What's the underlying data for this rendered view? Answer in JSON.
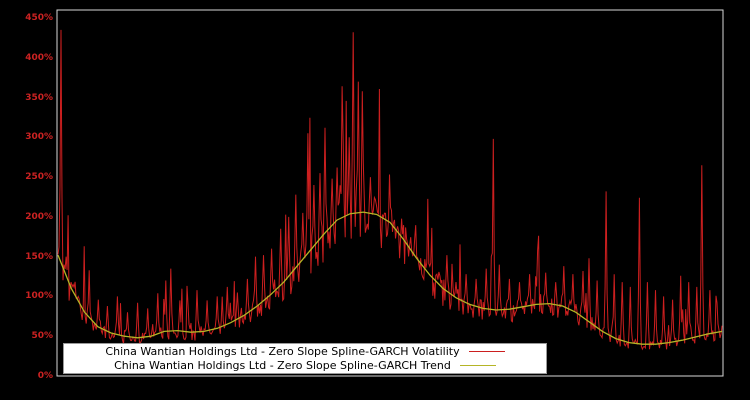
{
  "colors": {
    "background": "#000000",
    "plot_border": "#d8d8d8",
    "volatility": "#cc1f1f",
    "trend": "#b5b526",
    "tick_label": "#cc2222",
    "legend_bg": "#ffffff",
    "legend_text": "#000000"
  },
  "legend": {
    "entries": [
      {
        "label": "China Wantian Holdings Ltd - Zero Slope Spline-GARCH Volatility",
        "color_key": "volatility"
      },
      {
        "label": "China Wantian Holdings Ltd - Zero Slope Spline-GARCH Trend",
        "color_key": "trend"
      }
    ]
  },
  "chart_data": {
    "type": "line",
    "title": "",
    "xlabel": "",
    "ylabel": "",
    "x_range": [
      0,
      1
    ],
    "ylim": [
      0,
      460
    ],
    "grid": false,
    "legend_position": "bottom-center",
    "ytick_values": [
      0,
      50,
      100,
      150,
      200,
      250,
      300,
      350,
      400,
      450
    ],
    "ytick_labels": [
      "0%",
      "50%",
      "100%",
      "150%",
      "200%",
      "250%",
      "300%",
      "350%",
      "400%",
      "450%"
    ],
    "series": [
      {
        "name": "China Wantian Holdings Ltd - Zero Slope Spline-GARCH Volatility",
        "style": "spiky",
        "unit": "percent"
      },
      {
        "name": "China Wantian Holdings Ltd - Zero Slope Spline-GARCH Trend",
        "style": "smooth",
        "unit": "percent",
        "points": [
          [
            0.0,
            152
          ],
          [
            0.02,
            110
          ],
          [
            0.04,
            80
          ],
          [
            0.06,
            62
          ],
          [
            0.08,
            54
          ],
          [
            0.1,
            50
          ],
          [
            0.12,
            48
          ],
          [
            0.14,
            50
          ],
          [
            0.16,
            56
          ],
          [
            0.18,
            57
          ],
          [
            0.2,
            55
          ],
          [
            0.22,
            56
          ],
          [
            0.24,
            60
          ],
          [
            0.26,
            67
          ],
          [
            0.28,
            76
          ],
          [
            0.3,
            88
          ],
          [
            0.32,
            102
          ],
          [
            0.34,
            118
          ],
          [
            0.36,
            138
          ],
          [
            0.38,
            158
          ],
          [
            0.4,
            178
          ],
          [
            0.42,
            196
          ],
          [
            0.44,
            204
          ],
          [
            0.46,
            206
          ],
          [
            0.48,
            203
          ],
          [
            0.5,
            193
          ],
          [
            0.52,
            172
          ],
          [
            0.54,
            148
          ],
          [
            0.56,
            127
          ],
          [
            0.58,
            110
          ],
          [
            0.6,
            98
          ],
          [
            0.62,
            90
          ],
          [
            0.64,
            85
          ],
          [
            0.66,
            83
          ],
          [
            0.68,
            84
          ],
          [
            0.7,
            87
          ],
          [
            0.72,
            90
          ],
          [
            0.74,
            91
          ],
          [
            0.76,
            88
          ],
          [
            0.78,
            80
          ],
          [
            0.8,
            68
          ],
          [
            0.82,
            56
          ],
          [
            0.84,
            47
          ],
          [
            0.86,
            42
          ],
          [
            0.88,
            40
          ],
          [
            0.9,
            40
          ],
          [
            0.92,
            42
          ],
          [
            0.94,
            45
          ],
          [
            0.96,
            49
          ],
          [
            0.98,
            53
          ],
          [
            1.0,
            56
          ]
        ]
      }
    ],
    "volatility_model": {
      "samples": 660,
      "seed": 42,
      "base_band": [
        0.8,
        1.14
      ],
      "medium_spike_prob": 0.1,
      "medium_spike_band": [
        1.12,
        2.07
      ],
      "max_value": 452,
      "spikes": [
        [
          0.005,
          435
        ],
        [
          0.012,
          150
        ],
        [
          0.02,
          118
        ],
        [
          0.03,
          100
        ],
        [
          0.045,
          92
        ],
        [
          0.06,
          96
        ],
        [
          0.075,
          88
        ],
        [
          0.09,
          100
        ],
        [
          0.105,
          80
        ],
        [
          0.12,
          92
        ],
        [
          0.135,
          85
        ],
        [
          0.15,
          104
        ],
        [
          0.163,
          120
        ],
        [
          0.17,
          135
        ],
        [
          0.183,
          95
        ],
        [
          0.195,
          90
        ],
        [
          0.21,
          108
        ],
        [
          0.225,
          95
        ],
        [
          0.24,
          100
        ],
        [
          0.255,
          112
        ],
        [
          0.27,
          105
        ],
        [
          0.285,
          122
        ],
        [
          0.298,
          150
        ],
        [
          0.31,
          152
        ],
        [
          0.322,
          160
        ],
        [
          0.335,
          185
        ],
        [
          0.347,
          200
        ],
        [
          0.358,
          228
        ],
        [
          0.368,
          205
        ],
        [
          0.377,
          305
        ],
        [
          0.385,
          240
        ],
        [
          0.395,
          255
        ],
        [
          0.402,
          312
        ],
        [
          0.412,
          248
        ],
        [
          0.42,
          262
        ],
        [
          0.43,
          258
        ],
        [
          0.438,
          300
        ],
        [
          0.445,
          432
        ],
        [
          0.452,
          370
        ],
        [
          0.46,
          268
        ],
        [
          0.47,
          250
        ],
        [
          0.48,
          215
        ],
        [
          0.49,
          200
        ],
        [
          0.5,
          212
        ],
        [
          0.512,
          188
        ],
        [
          0.525,
          165
        ],
        [
          0.54,
          150
        ],
        [
          0.555,
          142
        ],
        [
          0.57,
          128
        ],
        [
          0.585,
          152
        ],
        [
          0.6,
          118
        ],
        [
          0.615,
          128
        ],
        [
          0.63,
          122
        ],
        [
          0.645,
          135
        ],
        [
          0.655,
          298
        ],
        [
          0.665,
          140
        ],
        [
          0.68,
          122
        ],
        [
          0.695,
          118
        ],
        [
          0.71,
          128
        ],
        [
          0.722,
          158
        ],
        [
          0.735,
          130
        ],
        [
          0.75,
          118
        ],
        [
          0.762,
          138
        ],
        [
          0.775,
          128
        ],
        [
          0.79,
          132
        ],
        [
          0.8,
          148
        ],
        [
          0.812,
          120
        ],
        [
          0.825,
          232
        ],
        [
          0.838,
          128
        ],
        [
          0.85,
          118
        ],
        [
          0.862,
          112
        ],
        [
          0.875,
          224
        ],
        [
          0.888,
          118
        ],
        [
          0.9,
          108
        ],
        [
          0.912,
          100
        ],
        [
          0.925,
          96
        ],
        [
          0.938,
          126
        ],
        [
          0.95,
          118
        ],
        [
          0.962,
          112
        ],
        [
          0.97,
          265
        ],
        [
          0.982,
          108
        ],
        [
          0.993,
          92
        ]
      ]
    }
  }
}
